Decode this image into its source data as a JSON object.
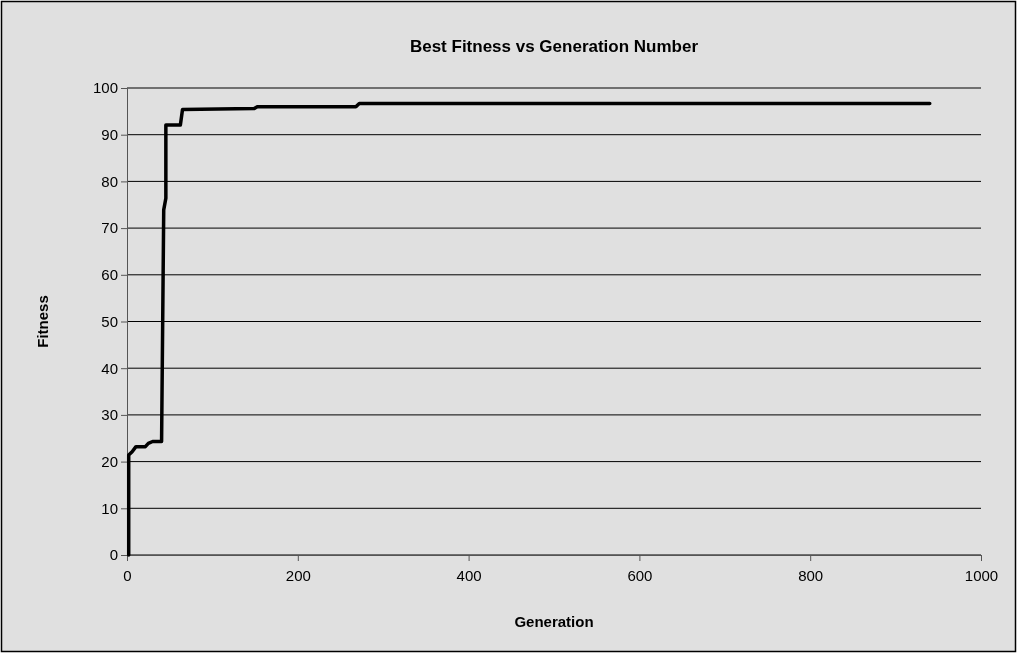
{
  "chart_data": {
    "type": "line",
    "title": "Best Fitness vs Generation Number",
    "xlabel": "Generation",
    "ylabel": "Fitness",
    "x": [
      2,
      2,
      6,
      10.5,
      21.5,
      25,
      30,
      40.5,
      43,
      45.5,
      45.5,
      62.5,
      65,
      149,
      152.5,
      268,
      272,
      940
    ],
    "series": [
      {
        "color": "#000000",
        "values": [
          0,
          21.4,
          22.1,
          23.2,
          23.2,
          23.9,
          24.3,
          24.3,
          73.9,
          76.4,
          92.1,
          92.1,
          95.4,
          95.6,
          96.0,
          96.0,
          96.7,
          96.7
        ]
      }
    ],
    "xlim": [
      0,
      1000
    ],
    "xticks": [
      0,
      200,
      400,
      600,
      800,
      1000
    ],
    "ylim": [
      0,
      100
    ],
    "yticks": [
      0,
      10,
      20,
      30,
      40,
      50,
      60,
      70,
      80,
      90,
      100
    ],
    "grid": "y",
    "marker": "none",
    "line_style": "solid"
  }
}
